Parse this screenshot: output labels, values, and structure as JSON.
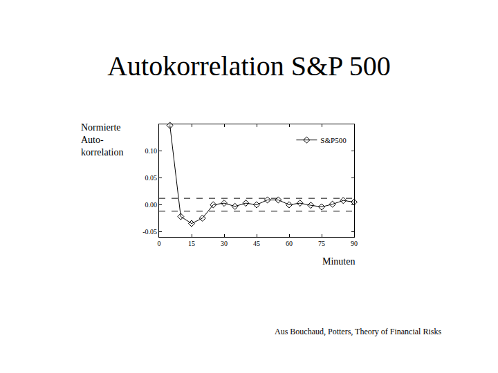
{
  "chart_data": {
    "type": "line",
    "title": "Autokorrelation S&P 500",
    "ylabel": [
      "Normierte",
      "Auto-",
      "korrelation"
    ],
    "xlabel": "Minuten",
    "source": "Aus Bouchaud, Potters, Theory of Financial Risks",
    "x": [
      5,
      10,
      15,
      20,
      25,
      30,
      35,
      40,
      45,
      50,
      55,
      60,
      65,
      70,
      75,
      80,
      85,
      90
    ],
    "series": [
      {
        "name": "S&P500",
        "color": "#000000",
        "marker": "diamond-open",
        "line_style": "solid",
        "values": [
          0.148,
          -0.022,
          -0.035,
          -0.025,
          0.0,
          0.003,
          -0.003,
          0.003,
          0.0,
          0.009,
          0.009,
          0.0,
          0.003,
          -0.001,
          -0.004,
          0.001,
          0.008,
          0.005
        ]
      }
    ],
    "hlines": {
      "values": [
        0.012,
        -0.012
      ],
      "line_style": "dashed",
      "color": "#000000"
    },
    "xlim": [
      0,
      90
    ],
    "xticks": [
      0,
      15,
      30,
      45,
      60,
      75,
      90
    ],
    "ylim": [
      -0.06,
      0.15
    ],
    "yticks": [
      -0.05,
      {
        "value": 0,
        "label": "0.00"
      },
      0.05,
      {
        "value": 0.1,
        "label": "0.10"
      }
    ],
    "grid": false,
    "legend": "upper right"
  }
}
